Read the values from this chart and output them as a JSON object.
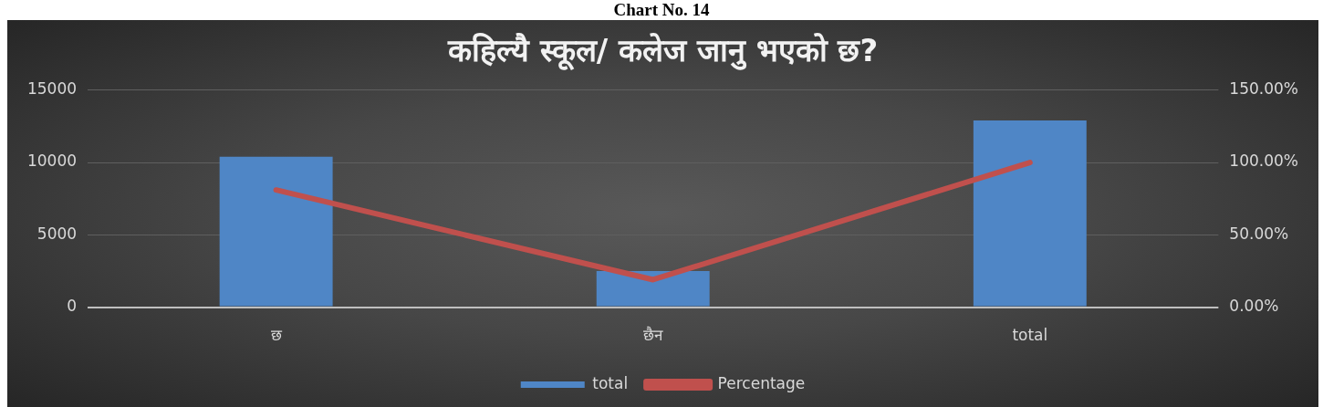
{
  "chart_data": {
    "type": "bar",
    "title": "कहिल्यै स्कूल/ कलेज जानु भएको छ?",
    "annotations": [
      "Chart No. 14"
    ],
    "categories": [
      "छ",
      "छैन",
      "total"
    ],
    "series": [
      {
        "name": "total",
        "color": "#4f86c6",
        "values": [
          10400,
          2500,
          12900
        ]
      },
      {
        "name": "Percentage",
        "type": "line",
        "color": "#c0504d",
        "axis": "y2",
        "values": [
          81,
          19,
          100
        ]
      }
    ],
    "ylim": [
      0,
      15000
    ],
    "yticks": [
      0,
      5000,
      10000,
      15000
    ],
    "y2lim": [
      0,
      150
    ],
    "y2ticks": [
      {
        "value": 0,
        "label": "0.00%"
      },
      {
        "value": 50,
        "label": "50.00%"
      },
      {
        "value": 100,
        "label": "100.00%"
      },
      {
        "value": 150,
        "label": "150.00%"
      }
    ],
    "grid": true,
    "legend": "bottom"
  }
}
